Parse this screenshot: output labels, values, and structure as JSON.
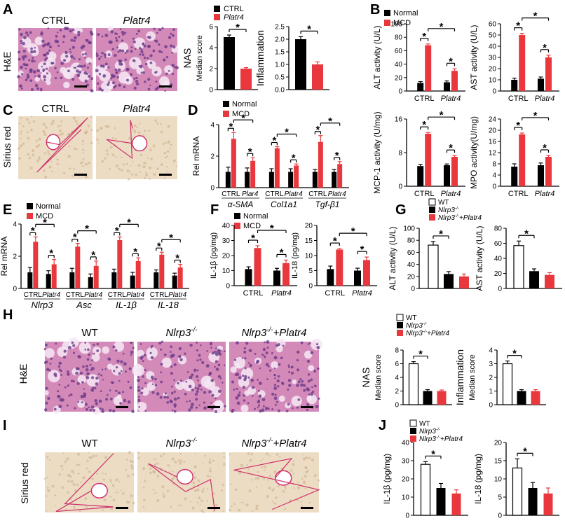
{
  "panel_letters": {
    "A": "A",
    "B": "B",
    "C": "C",
    "D": "D",
    "E": "E",
    "F": "F",
    "G": "G",
    "H": "H",
    "I": "I",
    "J": "J"
  },
  "micrographs": {
    "A": {
      "row_label": "H&E",
      "titles": [
        "CTRL",
        "Platr4"
      ],
      "italic": [
        false,
        true
      ]
    },
    "C": {
      "row_label": "Sirius red",
      "titles": [
        "CTRL",
        "Platr4"
      ],
      "italic": [
        false,
        true
      ]
    },
    "H": {
      "row_label": "H&E",
      "titles": [
        "WT",
        "Nlrp3",
        "Nlrp3"
      ],
      "sup": [
        "",
        "-/-",
        "-/-"
      ],
      "tail": [
        "",
        "",
        "+Platr4"
      ],
      "italic": [
        false,
        true,
        true
      ]
    },
    "I": {
      "row_label": "Sirius red",
      "titles": [
        "WT",
        "Nlrp3",
        "Nlrp3"
      ],
      "sup": [
        "",
        "-/-",
        "-/-"
      ],
      "tail": [
        "",
        "",
        "+Platr4"
      ],
      "italic": [
        false,
        true,
        true
      ]
    }
  },
  "legends": {
    "A": [
      "CTRL",
      "Platr4"
    ],
    "normal_mcd": [
      "Normal",
      "MCD"
    ],
    "genotype": [
      "WT",
      "Nlrp3",
      "Nlrp3"
    ],
    "genotype_sup": "-/-",
    "genotype_tail": "+Platr4"
  },
  "significance_symbol": "*",
  "colors": {
    "black": "#000000",
    "red": "#e8383d",
    "white": "#ffffff",
    "he_bg": "#d48ab8",
    "he_dark": "#6a3a8a",
    "sirius_bg": "#ecdcc4",
    "sirius_red": "#d0306a"
  },
  "chart_data": [
    {
      "id": "A_NAS",
      "type": "bar",
      "ylabel": "NAS",
      "ylabel2": "Median score",
      "ylim": [
        0,
        6
      ],
      "ticks": [
        0,
        2,
        4,
        6
      ],
      "categories": [
        "CTRL",
        "Platr4"
      ],
      "values": [
        5.0,
        2.0
      ],
      "errors": [
        0.2,
        0.1
      ],
      "fills": [
        "black",
        "red"
      ]
    },
    {
      "id": "A_Inflam",
      "type": "bar",
      "ylabel": "Inflammation",
      "ylim": [
        0,
        2.5
      ],
      "ticks": [
        0.0,
        0.5,
        1.0,
        1.5,
        2.0,
        2.5
      ],
      "categories": [
        "CTRL",
        "Platr4"
      ],
      "values": [
        2.0,
        1.0
      ],
      "errors": [
        0.1,
        0.1
      ],
      "fills": [
        "black",
        "red"
      ]
    },
    {
      "id": "B_ALT",
      "type": "bar",
      "ylabel": "ALT activity (U/L)",
      "ylim": [
        0,
        100
      ],
      "ticks": [
        0,
        20,
        40,
        60,
        80,
        100
      ],
      "groups": [
        "CTRL",
        "Platr4"
      ],
      "series": [
        {
          "name": "Normal",
          "values": [
            12,
            13
          ],
          "errors": [
            2,
            2
          ]
        },
        {
          "name": "MCD",
          "values": [
            68,
            30
          ],
          "errors": [
            2,
            3
          ]
        }
      ]
    },
    {
      "id": "B_AST",
      "type": "bar",
      "ylabel": "AST activity (U/L)",
      "ylim": [
        0,
        60
      ],
      "ticks": [
        0,
        10,
        20,
        30,
        40,
        50,
        60
      ],
      "groups": [
        "CTRL",
        "Platr4"
      ],
      "series": [
        {
          "name": "Normal",
          "values": [
            10,
            11
          ],
          "errors": [
            1.5,
            1.5
          ]
        },
        {
          "name": "MCD",
          "values": [
            50,
            30
          ],
          "errors": [
            1.5,
            2
          ]
        }
      ]
    },
    {
      "id": "B_MCP1",
      "type": "bar",
      "ylabel": "MCP-1 activity (U/mg)",
      "ylim": [
        0,
        16
      ],
      "ticks": [
        0,
        8,
        16
      ],
      "groups": [
        "CTRL",
        "Platr4"
      ],
      "series": [
        {
          "name": "Normal",
          "values": [
            4.8,
            5.0
          ],
          "errors": [
            0.4,
            0.3
          ]
        },
        {
          "name": "MCD",
          "values": [
            12.5,
            7.0
          ],
          "errors": [
            0.3,
            0.3
          ]
        }
      ]
    },
    {
      "id": "B_MPO",
      "type": "bar",
      "ylabel": "MPO activity(U/mg)",
      "ylim": [
        0,
        24
      ],
      "ticks": [
        0,
        4,
        8,
        12,
        16,
        20,
        24
      ],
      "groups": [
        "CTRL",
        "Platr4"
      ],
      "series": [
        {
          "name": "Normal",
          "values": [
            7,
            7.5
          ],
          "errors": [
            1,
            0.8
          ]
        },
        {
          "name": "MCD",
          "values": [
            18.5,
            10.5
          ],
          "errors": [
            0.5,
            0.5
          ]
        }
      ]
    },
    {
      "id": "D",
      "type": "bar",
      "ylabel": "Rel mRNA",
      "ylim": [
        0,
        4
      ],
      "ticks": [
        0,
        2,
        4
      ],
      "genes": [
        "α-SMA",
        "Col1a1",
        "Tgf-β1"
      ],
      "sublabels": [
        "CTRL",
        "Plar4",
        "CTRL",
        "Platr4",
        "CTRL",
        "Platr4"
      ],
      "series": [
        {
          "name": "Normal",
          "values": [
            1.0,
            1.0,
            1.0,
            1.0,
            1.0,
            1.0
          ],
          "errors": [
            0.3,
            0.25,
            0.2,
            0.2,
            0.15,
            0.15
          ]
        },
        {
          "name": "MCD",
          "values": [
            3.1,
            1.7,
            2.5,
            1.4,
            2.9,
            1.5
          ],
          "errors": [
            0.4,
            0.2,
            0.1,
            0.1,
            0.4,
            0.15
          ]
        }
      ]
    },
    {
      "id": "E",
      "type": "bar",
      "ylabel": "Rel mRNA",
      "ylim": [
        0,
        4
      ],
      "ticks": [
        0,
        2,
        4
      ],
      "genes": [
        "Nlrp3",
        "Asc",
        "IL-1β",
        "IL-18"
      ],
      "sublabels": [
        "CTRL",
        "Platr4",
        "CTRL",
        "Platr4",
        "CTRL",
        "Platr4",
        "CTRL",
        "Platr4"
      ],
      "series": [
        {
          "name": "Normal",
          "values": [
            1.0,
            0.9,
            1.0,
            0.7,
            1.0,
            0.8,
            1.0,
            0.8
          ],
          "errors": [
            0.3,
            0.2,
            0.25,
            0.2,
            0.2,
            0.2,
            0.15,
            0.15
          ]
        },
        {
          "name": "MCD",
          "values": [
            2.9,
            1.5,
            2.6,
            1.4,
            3.0,
            1.7,
            2.1,
            1.3
          ],
          "errors": [
            0.3,
            0.3,
            0.2,
            0.3,
            0.2,
            0.2,
            0.15,
            0.2
          ]
        }
      ]
    },
    {
      "id": "F_IL1b",
      "type": "bar",
      "ylabel": "IL-1β  (pg/mg)",
      "ylim": [
        0,
        40
      ],
      "ticks": [
        0,
        10,
        20,
        30,
        40
      ],
      "groups": [
        "CTRL",
        "Platr4"
      ],
      "series": [
        {
          "name": "Normal",
          "values": [
            11,
            10
          ],
          "errors": [
            1.5,
            1.5
          ]
        },
        {
          "name": "MCD",
          "values": [
            25,
            15
          ],
          "errors": [
            1.5,
            2
          ]
        }
      ]
    },
    {
      "id": "F_IL18",
      "type": "bar",
      "ylabel": "IL-18  (pg/mg)",
      "ylim": [
        0,
        20
      ],
      "ticks": [
        0,
        5,
        10,
        15,
        20
      ],
      "groups": [
        "CTRL",
        "Platr4"
      ],
      "series": [
        {
          "name": "Normal",
          "values": [
            5.5,
            5.0
          ],
          "errors": [
            1,
            0.8
          ]
        },
        {
          "name": "MCD",
          "values": [
            12,
            8.5
          ],
          "errors": [
            0.3,
            1
          ]
        }
      ]
    },
    {
      "id": "G_ALT",
      "type": "bar",
      "ylabel": "ALT activity (U/L)",
      "ylim": [
        0,
        100
      ],
      "ticks": [
        0,
        20,
        40,
        60,
        80,
        100
      ],
      "categories": [
        "WT",
        "Nlrp3-/-",
        "Nlrp3-/-+Platr4"
      ],
      "values": [
        72,
        24,
        20
      ],
      "errors": [
        6,
        4,
        4
      ],
      "fills": [
        "white",
        "black",
        "red"
      ]
    },
    {
      "id": "G_AST",
      "type": "bar",
      "ylabel": "AST activity (U/L)",
      "ylim": [
        0,
        80
      ],
      "ticks": [
        0,
        20,
        40,
        60,
        80
      ],
      "categories": [
        "WT",
        "Nlrp3-/-",
        "Nlrp3-/-+Platr4"
      ],
      "values": [
        57,
        23,
        18
      ],
      "errors": [
        6,
        3,
        3
      ],
      "fills": [
        "white",
        "black",
        "red"
      ]
    },
    {
      "id": "H_NAS",
      "type": "bar",
      "ylabel": "NAS",
      "ylabel2": "Median score",
      "ylim": [
        0,
        8
      ],
      "ticks": [
        0,
        2,
        4,
        6,
        8
      ],
      "categories": [
        "WT",
        "Nlrp3-/-",
        "Nlrp3-/-+Platr4"
      ],
      "values": [
        6.0,
        2.0,
        2.0
      ],
      "errors": [
        0.3,
        0.2,
        0.15
      ],
      "fills": [
        "white",
        "black",
        "red"
      ]
    },
    {
      "id": "H_Inflam",
      "type": "bar",
      "ylabel": "Inflammation",
      "ylabel2": "Median score",
      "ylim": [
        0,
        4
      ],
      "ticks": [
        0,
        1,
        2,
        3,
        4
      ],
      "categories": [
        "WT",
        "Nlrp3-/-",
        "Nlrp3-/-+Platr4"
      ],
      "values": [
        3.0,
        1.0,
        1.0
      ],
      "errors": [
        0.2,
        0.1,
        0.1
      ],
      "fills": [
        "white",
        "black",
        "red"
      ]
    },
    {
      "id": "J_IL1b",
      "type": "bar",
      "ylabel": "IL-1β  (pg/mg)",
      "ylim": [
        0,
        40
      ],
      "ticks": [
        0,
        10,
        20,
        30,
        40
      ],
      "categories": [
        "WT",
        "Nlrp3-/-",
        "Nlrp3-/-+Platr4"
      ],
      "values": [
        28,
        15,
        12
      ],
      "errors": [
        1.5,
        2.5,
        2
      ],
      "fills": [
        "white",
        "black",
        "red"
      ]
    },
    {
      "id": "J_IL18",
      "type": "bar",
      "ylabel": "IL-18  (pg/mg)",
      "ylim": [
        0,
        20
      ],
      "ticks": [
        0,
        5,
        10,
        15,
        20
      ],
      "categories": [
        "WT",
        "Nlrp3-/-",
        "Nlrp3-/-+Platr4"
      ],
      "values": [
        13,
        7.5,
        6
      ],
      "errors": [
        2.5,
        1.5,
        1.5
      ],
      "fills": [
        "white",
        "black",
        "red"
      ]
    }
  ]
}
